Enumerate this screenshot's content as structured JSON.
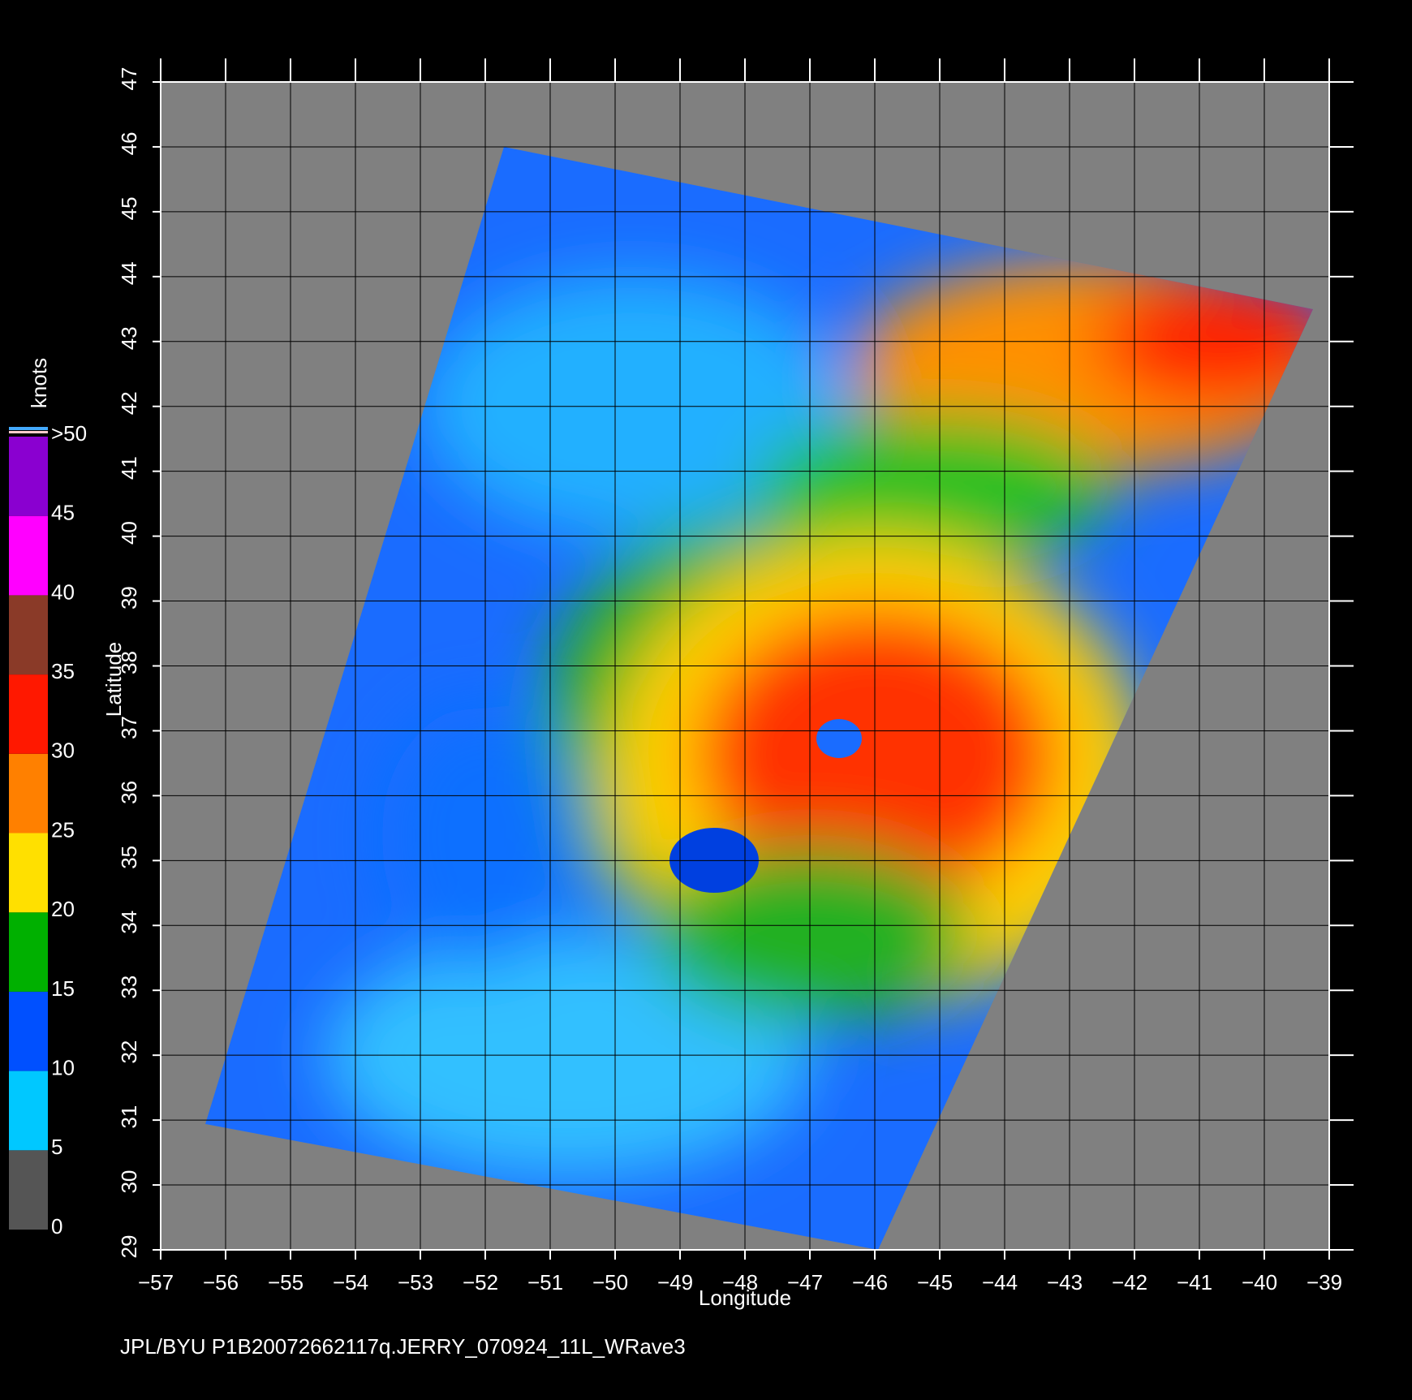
{
  "chart_data": {
    "type": "map",
    "xlabel": "Longitude",
    "ylabel": "Latitude",
    "xlim": [
      -57,
      -39
    ],
    "ylim": [
      29,
      47
    ],
    "xticks": [
      {
        "value": -57,
        "label": "−57"
      },
      {
        "value": -56,
        "label": "−56"
      },
      {
        "value": -55,
        "label": "−55"
      },
      {
        "value": -54,
        "label": "−54"
      },
      {
        "value": -53,
        "label": "−53"
      },
      {
        "value": -52,
        "label": "−52"
      },
      {
        "value": -51,
        "label": "−51"
      },
      {
        "value": -50,
        "label": "−50"
      },
      {
        "value": -49,
        "label": "−49"
      },
      {
        "value": -48,
        "label": "−48"
      },
      {
        "value": -47,
        "label": "−47"
      },
      {
        "value": -46,
        "label": "−46"
      },
      {
        "value": -45,
        "label": "−45"
      },
      {
        "value": -44,
        "label": "−44"
      },
      {
        "value": -43,
        "label": "−43"
      },
      {
        "value": -42,
        "label": "−42"
      },
      {
        "value": -41,
        "label": "−41"
      },
      {
        "value": -40,
        "label": "−40"
      },
      {
        "value": -39,
        "label": "−39"
      }
    ],
    "yticks": [
      29,
      30,
      31,
      32,
      33,
      34,
      35,
      36,
      37,
      38,
      39,
      40,
      41,
      42,
      43,
      44,
      45,
      46,
      47
    ],
    "grid": true,
    "colorbar": {
      "label": "knots",
      "lim": [
        0,
        50
      ],
      "ticks": [
        0,
        5,
        10,
        15,
        20,
        25,
        30,
        35,
        40,
        45,
        {
          "value": 50,
          "label": ">50"
        }
      ],
      "colors": [
        "#555555",
        "#00c8ff",
        "#0050ff",
        "#00b000",
        "#ffe000",
        "#ff8000",
        "#ff1800",
        "#8a3a28",
        "#ff00ff",
        "#8a00d0"
      ]
    },
    "footer": "JPL/BYU  P1B20072662117q.JERRY_070924_11L_WRave3"
  }
}
